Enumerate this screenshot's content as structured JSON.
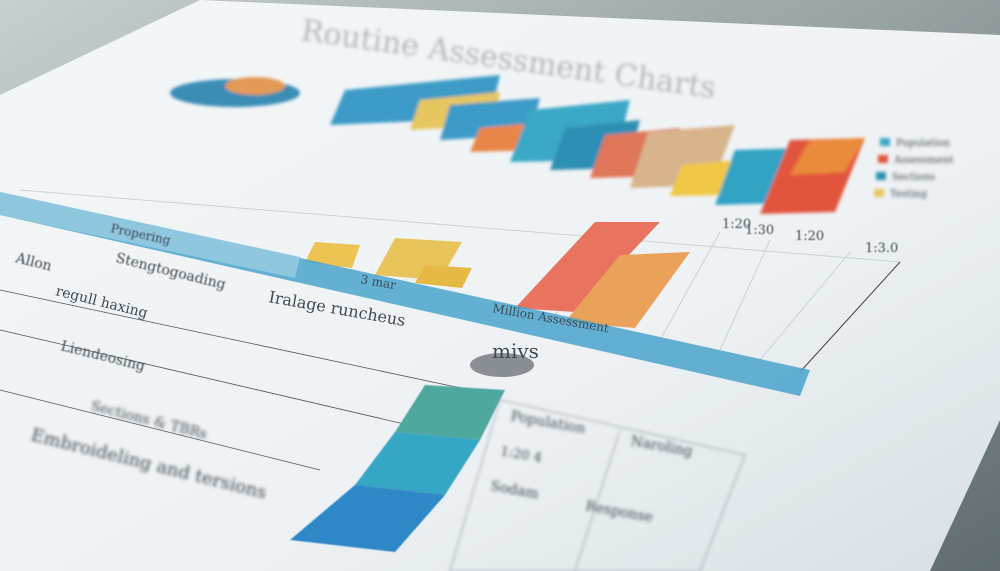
{
  "document": {
    "header": {
      "title": "Routine Assessment Charts"
    },
    "legend": [
      "Population",
      "Assessment",
      "Sections",
      "Testing"
    ],
    "scale_labels": [
      "1:20",
      "1:30",
      "1:20",
      "1:3.0"
    ],
    "band_labels": [
      "Propering",
      "3 mar",
      "Million Assessment"
    ],
    "rows": [
      "Allon",
      "regull haxing",
      "Stengtogoading",
      "Iralage runcheus",
      "Liendeosing",
      "Sections & TBRs",
      "Embroideling and tersions"
    ],
    "logo": "mivs",
    "table": {
      "headers": [
        "Population",
        "Naroling"
      ],
      "cells": [
        "1:20 4",
        "Sodam",
        "Response"
      ]
    }
  }
}
